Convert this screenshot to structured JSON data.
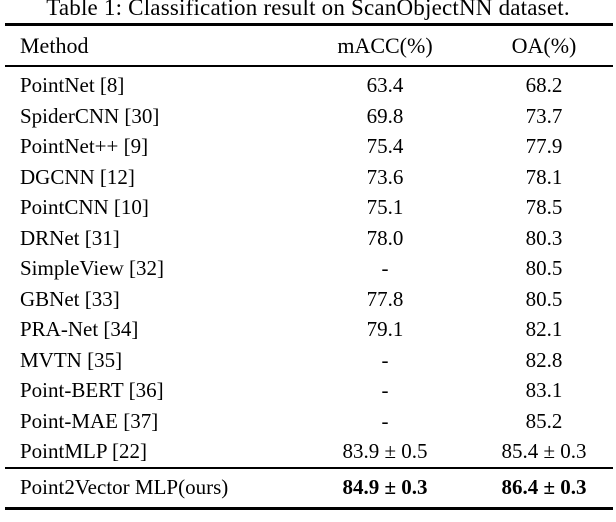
{
  "caption": "Table 1: Classification result on ScanObjectNN dataset.",
  "table": {
    "columns": [
      "Method",
      "mACC(%)",
      "OA(%)"
    ],
    "rows": [
      {
        "method": "PointNet [8]",
        "macc": "63.4",
        "oa": "68.2"
      },
      {
        "method": "SpiderCNN [30]",
        "macc": "69.8",
        "oa": "73.7"
      },
      {
        "method": "PointNet++ [9]",
        "macc": "75.4",
        "oa": "77.9"
      },
      {
        "method": "DGCNN [12]",
        "macc": "73.6",
        "oa": "78.1"
      },
      {
        "method": "PointCNN [10]",
        "macc": "75.1",
        "oa": "78.5"
      },
      {
        "method": "DRNet [31]",
        "macc": "78.0",
        "oa": "80.3"
      },
      {
        "method": "SimpleView [32]",
        "macc": "-",
        "oa": "80.5"
      },
      {
        "method": "GBNet [33]",
        "macc": "77.8",
        "oa": "80.5"
      },
      {
        "method": "PRA-Net [34]",
        "macc": "79.1",
        "oa": "82.1"
      },
      {
        "method": "MVTN [35]",
        "macc": "-",
        "oa": "82.8"
      },
      {
        "method": "Point-BERT [36]",
        "macc": "-",
        "oa": "83.1"
      },
      {
        "method": "Point-MAE [37]",
        "macc": "-",
        "oa": "85.2"
      },
      {
        "method": "PointMLP [22]",
        "macc": "83.9 ± 0.5",
        "oa": "85.4 ± 0.3"
      }
    ],
    "ours_row": {
      "method": "Point2Vector MLP(ours)",
      "macc": "84.9 ± 0.3",
      "oa": "86.4 ± 0.3"
    },
    "text_color": "#000000",
    "background_color": "#ffffff"
  }
}
